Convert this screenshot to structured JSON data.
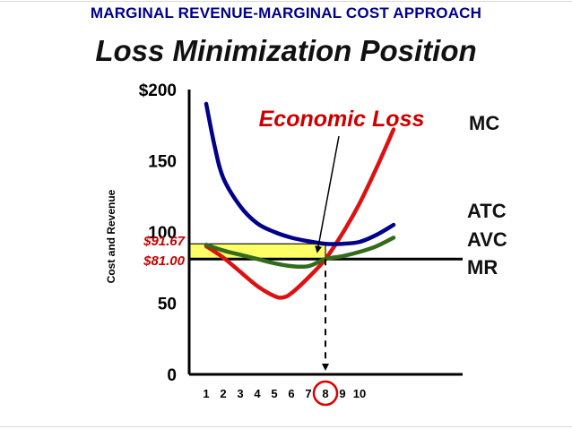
{
  "slide": {
    "subtitle": "MARGINAL REVENUE-MARGINAL COST APPROACH",
    "title": "Loss Minimization Position"
  },
  "chart_data": {
    "type": "line",
    "title": "Loss Minimization Position",
    "xlabel": "",
    "ylabel": "Cost and Revenue",
    "xlim": [
      0.5,
      12
    ],
    "ylim": [
      0,
      200
    ],
    "y_tick_labels": [
      {
        "value": 0,
        "label": "0"
      },
      {
        "value": 50,
        "label": "50"
      },
      {
        "value": 100,
        "label": "100"
      },
      {
        "value": 150,
        "label": "150"
      },
      {
        "value": 200,
        "label": "$200"
      }
    ],
    "x_tick_labels": [
      "1",
      "2",
      "3",
      "4",
      "5",
      "6",
      "7",
      "8",
      "9",
      "10"
    ],
    "colors": {
      "mc": "#dd1111",
      "atc": "#00008b",
      "avc": "#336b1a",
      "mr": "#000000",
      "loss_area": "#ffff66",
      "annotation": "#cc0000",
      "circle": "#dd0000"
    },
    "series": [
      {
        "name": "MC",
        "x": [
          1,
          2,
          3,
          4,
          5,
          5.5,
          6,
          7,
          8,
          9,
          10,
          11,
          12
        ],
        "y": [
          90,
          82,
          72,
          62,
          55,
          54,
          57,
          68,
          81,
          99,
          120,
          145,
          172
        ]
      },
      {
        "name": "ATC",
        "x": [
          1,
          1.5,
          2,
          3,
          4,
          5,
          6,
          7,
          8,
          9,
          10,
          11,
          12
        ],
        "y": [
          190,
          160,
          138,
          118,
          106,
          100,
          96,
          93.5,
          91.7,
          91.7,
          93,
          98,
          105
        ]
      },
      {
        "name": "AVC",
        "x": [
          1,
          2,
          3,
          4,
          5,
          6,
          7,
          8,
          9,
          10,
          11,
          12
        ],
        "y": [
          91,
          87,
          84,
          81,
          78,
          76,
          76,
          81,
          83,
          86,
          90,
          96
        ]
      }
    ],
    "lines": [
      {
        "name": "MR",
        "y": 81
      }
    ],
    "price_labels": [
      {
        "value": 91.67,
        "label": "$91.67"
      },
      {
        "value": 81,
        "label": "$81.00"
      }
    ],
    "loss_area": {
      "x": [
        0.5,
        8
      ],
      "y": [
        81,
        91.67
      ]
    },
    "annotations": [
      {
        "text": "Economic Loss",
        "points_to": {
          "x": 5,
          "y": 86.3
        }
      },
      {
        "text": "",
        "marks": "equilibrium quantity",
        "x": 8
      }
    ]
  }
}
